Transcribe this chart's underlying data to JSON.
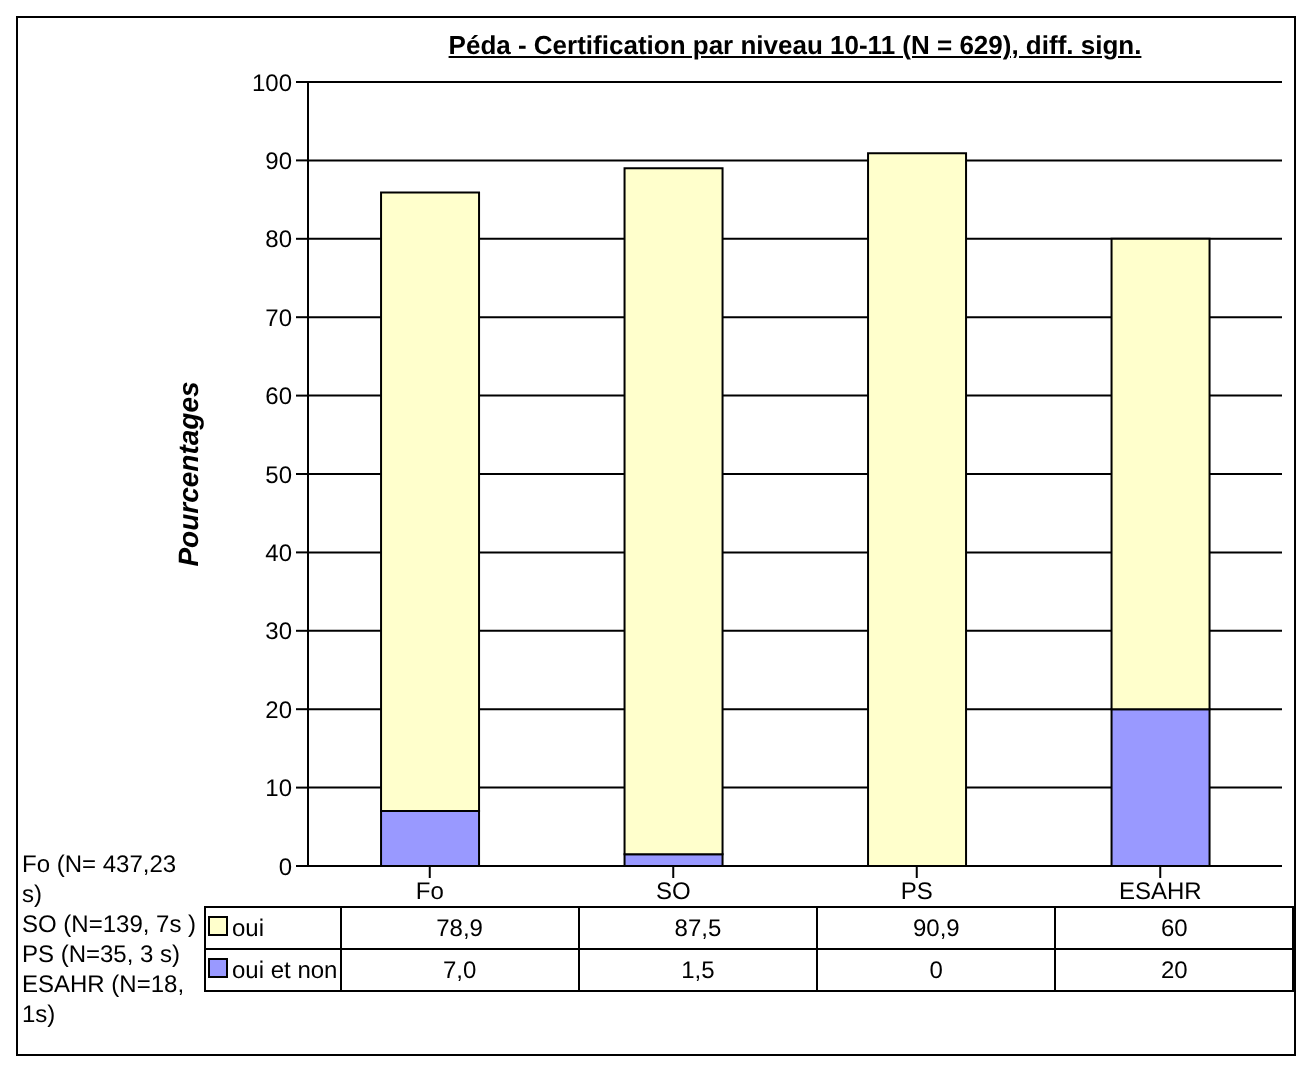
{
  "chart_data": {
    "type": "bar",
    "title": "Péda - Certification par niveau 10-11 (N = 629), diff. sign.",
    "ylabel": "Pourcentages",
    "categories": [
      "Fo",
      "SO",
      "PS",
      "ESAHR"
    ],
    "stacked": true,
    "series": [
      {
        "name": "oui et non",
        "color": "#9999ff",
        "values": [
          7.0,
          1.5,
          0,
          20
        ],
        "value_labels": [
          "7,0",
          "1,5",
          "0",
          "20"
        ]
      },
      {
        "name": "oui",
        "color": "#ffffcc",
        "values": [
          78.9,
          87.5,
          90.9,
          60
        ],
        "value_labels": [
          "78,9",
          "87,5",
          "90,9",
          "60"
        ]
      }
    ],
    "ylim": [
      0,
      100
    ],
    "yticks": [
      0,
      10,
      20,
      30,
      40,
      50,
      60,
      70,
      80,
      90,
      100
    ],
    "grid": "y",
    "legend": "bottom",
    "annotations": [
      "Fo (N= 437,23 s)",
      "SO (N=139, 7s )",
      "PS (N=35, 3 s)",
      "ESAHR (N=18, 1s)"
    ]
  }
}
